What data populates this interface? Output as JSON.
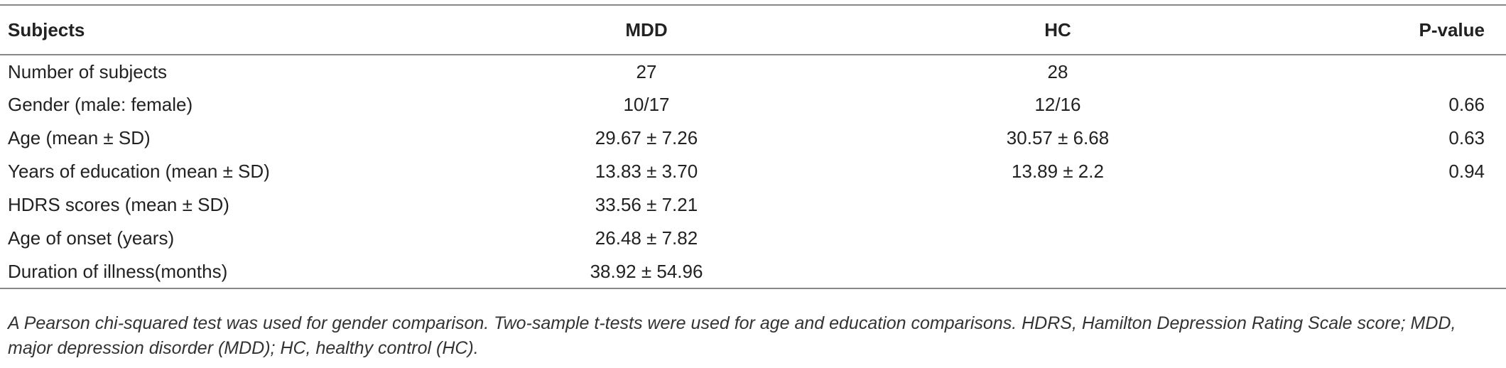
{
  "table": {
    "columns": [
      "Subjects",
      "MDD",
      "HC",
      "P-value"
    ],
    "rows": [
      [
        "Number of subjects",
        "27",
        "28",
        null
      ],
      [
        "Gender (male: female)",
        "10/17",
        "12/16",
        "0.66"
      ],
      [
        "Age (mean ± SD)",
        "29.67 ± 7.26",
        "30.57 ± 6.68",
        "0.63"
      ],
      [
        "Years of education (mean ± SD)",
        "13.83 ± 3.70",
        "13.89 ± 2.2",
        "0.94"
      ],
      [
        "HDRS scores (mean ± SD)",
        "33.56 ± 7.21",
        null,
        null
      ],
      [
        "Age of onset (years)",
        "26.48 ± 7.82",
        null,
        null
      ],
      [
        "Duration of illness(months)",
        "38.92 ± 54.96",
        null,
        null
      ]
    ],
    "footnote": "A Pearson chi-squared test was used for gender comparison. Two-sample t-tests were used for age and education comparisons. HDRS, Hamilton Depression Rating Scale score; MDD, major depression disorder (MDD); HC, healthy control (HC)."
  }
}
